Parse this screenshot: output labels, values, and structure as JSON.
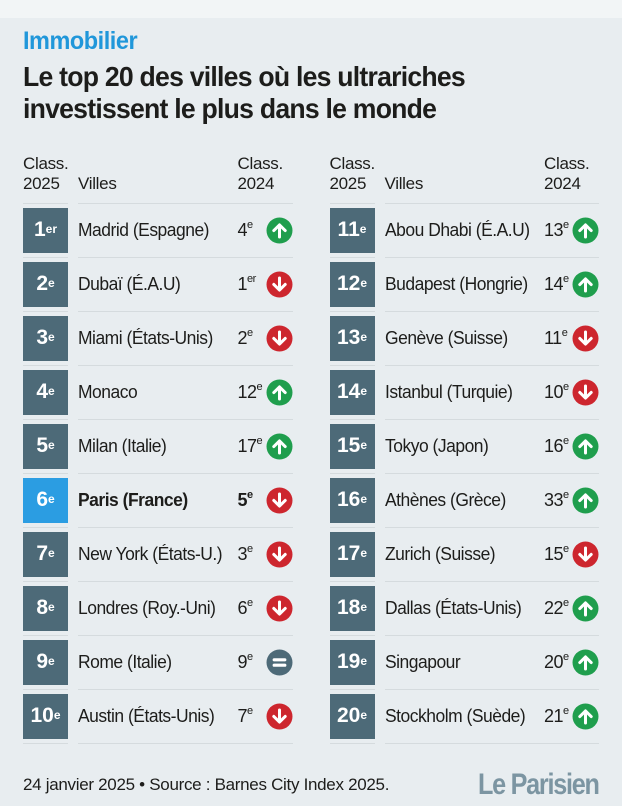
{
  "header": {
    "kicker": "Immobilier",
    "title_line1": "Le top 20 des villes où les ultrariches",
    "title_line2": "investissent le plus dans le monde"
  },
  "table_header": {
    "class_label": "Class.",
    "year_2025": "2025",
    "villes": "Villes",
    "year_2024": "2024"
  },
  "chart_data": {
    "type": "table",
    "title": "Le top 20 des villes où les ultrariches investissent le plus dans le monde",
    "columns": [
      "Class. 2025",
      "Villes",
      "Class. 2024"
    ],
    "layout": "two-column table: rows 1-10 left, rows 11-20 right; trend arrow compares 2025 vs 2024 rank",
    "rows": [
      {
        "rank": "1",
        "rank_suffix": "er",
        "city": "Madrid (Espagne)",
        "prev": "4",
        "prev_suffix": "e",
        "trend": "up",
        "highlight": false
      },
      {
        "rank": "2",
        "rank_suffix": "e",
        "city": "Dubaï (É.A.U)",
        "prev": "1",
        "prev_suffix": "er",
        "trend": "down",
        "highlight": false
      },
      {
        "rank": "3",
        "rank_suffix": "e",
        "city": "Miami (États-Unis)",
        "prev": "2",
        "prev_suffix": "e",
        "trend": "down",
        "highlight": false
      },
      {
        "rank": "4",
        "rank_suffix": "e",
        "city": "Monaco",
        "prev": "12",
        "prev_suffix": "e",
        "trend": "up",
        "highlight": false
      },
      {
        "rank": "5",
        "rank_suffix": "e",
        "city": "Milan (Italie)",
        "prev": "17",
        "prev_suffix": "e",
        "trend": "up",
        "highlight": false
      },
      {
        "rank": "6",
        "rank_suffix": "e",
        "city": "Paris (France)",
        "prev": "5",
        "prev_suffix": "e",
        "trend": "down",
        "highlight": true
      },
      {
        "rank": "7",
        "rank_suffix": "e",
        "city": "New York (États-U.)",
        "prev": "3",
        "prev_suffix": "e",
        "trend": "down",
        "highlight": false
      },
      {
        "rank": "8",
        "rank_suffix": "e",
        "city": "Londres (Roy.-Uni)",
        "prev": "6",
        "prev_suffix": "e",
        "trend": "down",
        "highlight": false
      },
      {
        "rank": "9",
        "rank_suffix": "e",
        "city": "Rome (Italie)",
        "prev": "9",
        "prev_suffix": "e",
        "trend": "equal",
        "highlight": false
      },
      {
        "rank": "10",
        "rank_suffix": "e",
        "city": "Austin (États-Unis)",
        "prev": "7",
        "prev_suffix": "e",
        "trend": "down",
        "highlight": false
      },
      {
        "rank": "11",
        "rank_suffix": "e",
        "city": "Abou Dhabi (É.A.U)",
        "prev": "13",
        "prev_suffix": "e",
        "trend": "up",
        "highlight": false
      },
      {
        "rank": "12",
        "rank_suffix": "e",
        "city": "Budapest (Hongrie)",
        "prev": "14",
        "prev_suffix": "e",
        "trend": "up",
        "highlight": false
      },
      {
        "rank": "13",
        "rank_suffix": "e",
        "city": "Genève (Suisse)",
        "prev": "11",
        "prev_suffix": "e",
        "trend": "down",
        "highlight": false
      },
      {
        "rank": "14",
        "rank_suffix": "e",
        "city": "Istanbul (Turquie)",
        "prev": "10",
        "prev_suffix": "e",
        "trend": "down",
        "highlight": false
      },
      {
        "rank": "15",
        "rank_suffix": "e",
        "city": "Tokyo (Japon)",
        "prev": "16",
        "prev_suffix": "e",
        "trend": "up",
        "highlight": false
      },
      {
        "rank": "16",
        "rank_suffix": "e",
        "city": "Athènes (Grèce)",
        "prev": "33",
        "prev_suffix": "e",
        "trend": "up",
        "highlight": false
      },
      {
        "rank": "17",
        "rank_suffix": "e",
        "city": "Zurich (Suisse)",
        "prev": "15",
        "prev_suffix": "e",
        "trend": "down",
        "highlight": false
      },
      {
        "rank": "18",
        "rank_suffix": "e",
        "city": "Dallas (États-Unis)",
        "prev": "22",
        "prev_suffix": "e",
        "trend": "up",
        "highlight": false
      },
      {
        "rank": "19",
        "rank_suffix": "e",
        "city": "Singapour",
        "prev": "20",
        "prev_suffix": "e",
        "trend": "up",
        "highlight": false
      },
      {
        "rank": "20",
        "rank_suffix": "e",
        "city": "Stockholm (Suède)",
        "prev": "21",
        "prev_suffix": "e",
        "trend": "up",
        "highlight": false
      }
    ]
  },
  "icons": {
    "up": "arrow-up-circle-icon",
    "down": "arrow-down-circle-icon",
    "equal": "equal-circle-icon"
  },
  "footer": {
    "caption": "24 janvier 2025 • Source : Barnes City Index 2025.",
    "logo": "Le Parisien"
  },
  "colors": {
    "background": "#e8edf0",
    "kicker": "#2097da",
    "text": "#1d1d1b",
    "badge": "#4d6a78",
    "badge_highlight": "#2b9de2",
    "trend_up": "#1f9e4d",
    "trend_down": "#cd262e",
    "trend_equal": "#4d6a78",
    "divider": "#d5dbde",
    "logo": "#7c95a2"
  }
}
